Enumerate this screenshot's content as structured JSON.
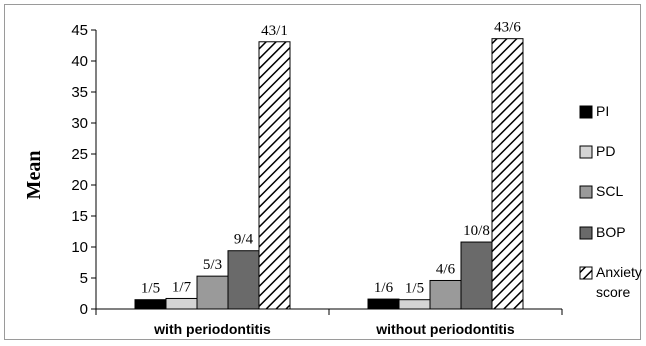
{
  "chart_data": {
    "type": "bar",
    "title": "",
    "xlabel": "",
    "ylabel": "Mean",
    "ylim": [
      0,
      45
    ],
    "yticks": [
      0,
      5,
      10,
      15,
      20,
      25,
      30,
      35,
      40,
      45
    ],
    "grid": false,
    "legend_position": "right",
    "categories": [
      "with periodontitis",
      "without periodontitis"
    ],
    "series": [
      {
        "name": "PI",
        "values": [
          1.5,
          1.6
        ],
        "labels": [
          "1/5",
          "1/6"
        ],
        "fill": "solid",
        "color": "#000000"
      },
      {
        "name": "PD",
        "values": [
          1.7,
          1.5
        ],
        "labels": [
          "1/7",
          "1/5"
        ],
        "fill": "solid",
        "color": "#d4d4d4"
      },
      {
        "name": "SCL",
        "values": [
          5.3,
          4.6
        ],
        "labels": [
          "5/3",
          "4/6"
        ],
        "fill": "solid",
        "color": "#9a9a9a"
      },
      {
        "name": "BOP",
        "values": [
          9.4,
          10.8
        ],
        "labels": [
          "9/4",
          "10/8"
        ],
        "fill": "solid",
        "color": "#6a6a6a"
      },
      {
        "name": "Anxiety score",
        "values": [
          43.1,
          43.6
        ],
        "labels": [
          "43/1",
          "43/6"
        ],
        "fill": "hatch",
        "color": "#000000"
      }
    ]
  }
}
